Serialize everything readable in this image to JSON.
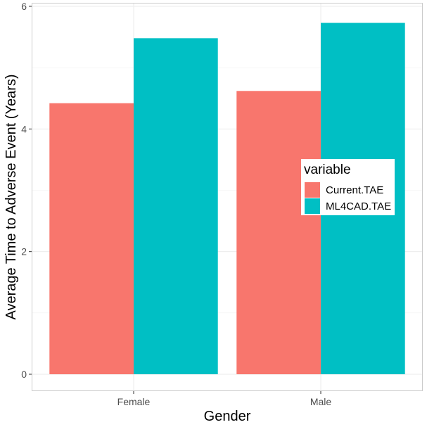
{
  "chart_data": {
    "type": "bar",
    "categories": [
      "Female",
      "Male"
    ],
    "series": [
      {
        "name": "Current.TAE",
        "color": "#F8766D",
        "values": [
          4.42,
          4.62
        ]
      },
      {
        "name": "ML4CAD.TAE",
        "color": "#00BFC4",
        "values": [
          5.48,
          5.73
        ]
      }
    ],
    "xlabel": "Gender",
    "ylabel": "Average Time to Adverse Event (Years)",
    "ylim": [
      0,
      6
    ],
    "y_ticks": [
      0,
      2,
      4,
      6
    ],
    "y_tick_labels": [
      "0",
      "2",
      "4",
      "6"
    ],
    "grid": true,
    "legend": {
      "title": "variable",
      "placement": "right"
    }
  }
}
